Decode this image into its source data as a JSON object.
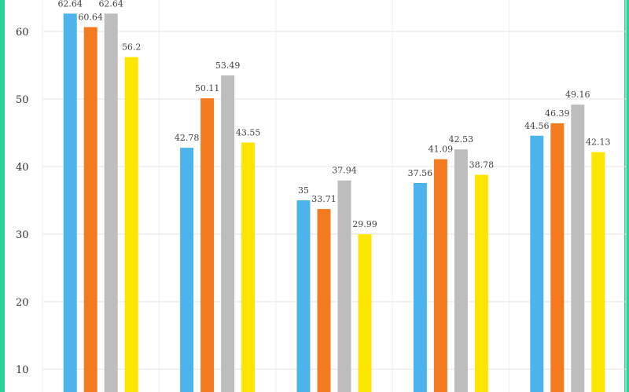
{
  "chart_data": {
    "type": "bar",
    "ylim": [
      7,
      65
    ],
    "yticks": [
      10,
      20,
      30,
      40,
      50,
      60
    ],
    "ytick_labels": [
      "10",
      "20",
      "30",
      "40",
      "50",
      "60"
    ],
    "grid": true,
    "groups": 5,
    "series": [
      {
        "color": "#4db3ec",
        "values": [
          62.64,
          42.78,
          35,
          37.56,
          44.56
        ],
        "labels": [
          "62.64",
          "42.78",
          "35",
          "37.56",
          "44.56"
        ]
      },
      {
        "color": "#f47b20",
        "values": [
          60.64,
          50.11,
          33.71,
          41.09,
          46.39
        ],
        "labels": [
          "60.64",
          "50.11",
          "33.71",
          "41.09",
          "46.39"
        ]
      },
      {
        "color": "#bdbdbd",
        "values": [
          62.64,
          53.49,
          37.94,
          42.53,
          49.16
        ],
        "labels": [
          "62.64",
          "53.49",
          "37.94",
          "42.53",
          "49.16"
        ]
      },
      {
        "color": "#ffe600",
        "values": [
          56.2,
          43.55,
          29.99,
          38.78,
          42.13
        ],
        "labels": [
          "56.2",
          "43.55",
          "29.99",
          "38.78",
          "42.13"
        ]
      }
    ]
  }
}
